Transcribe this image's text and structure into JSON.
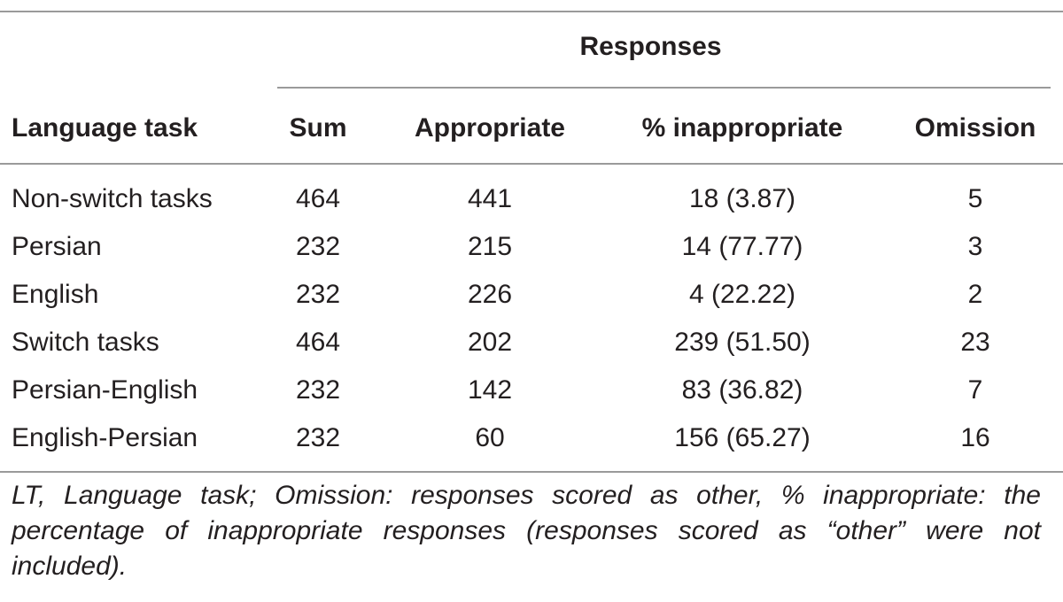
{
  "table": {
    "group_header": "Responses",
    "columns": [
      "Language task",
      "Sum",
      "Appropriate",
      "% inappropriate",
      "Omission"
    ],
    "rows": [
      [
        "Non-switch tasks",
        "464",
        "441",
        "18 (3.87)",
        "5"
      ],
      [
        "Persian",
        "232",
        "215",
        "14 (77.77)",
        "3"
      ],
      [
        "English",
        "232",
        "226",
        "4 (22.22)",
        "2"
      ],
      [
        "Switch tasks",
        "464",
        "202",
        "239 (51.50)",
        "23"
      ],
      [
        "Persian-English",
        "232",
        "142",
        "83 (36.82)",
        "7"
      ],
      [
        "English-Persian",
        "232",
        "60",
        "156 (65.27)",
        "16"
      ]
    ],
    "footnote": "LT, Language task; Omission: responses scored as other, % inappropriate: the percentage of inappropriate responses (responses scored as “other” were not included)."
  }
}
